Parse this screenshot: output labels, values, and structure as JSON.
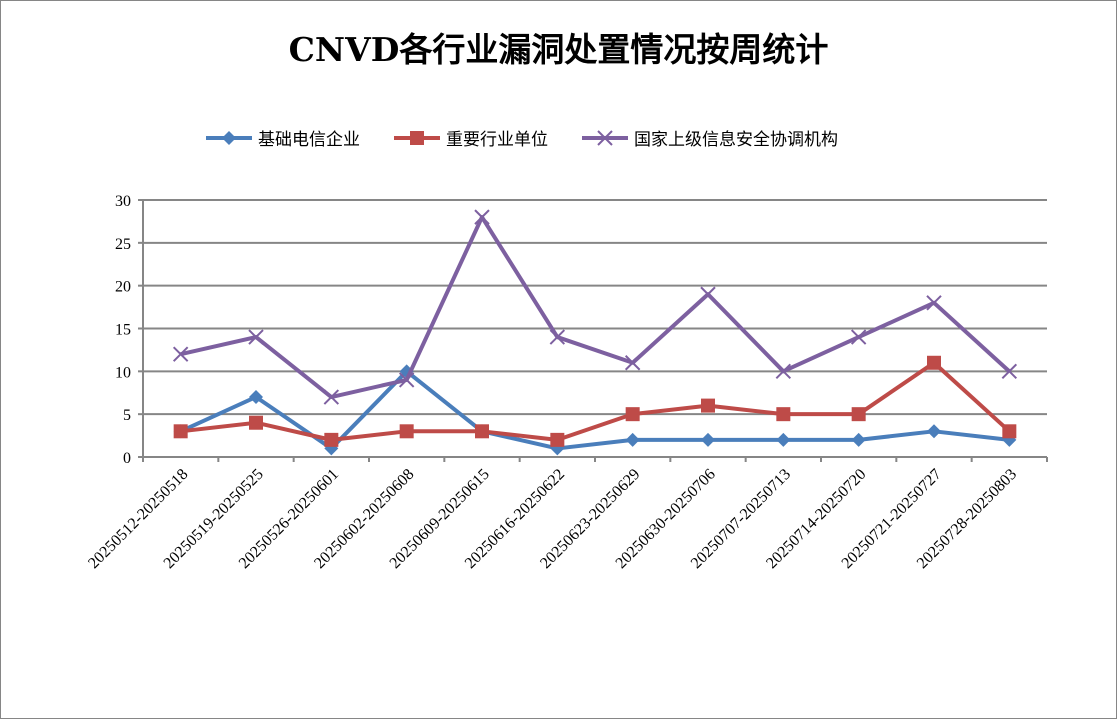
{
  "chart_data": {
    "type": "line",
    "title": "CNVD各行业漏洞处置情况按周统计",
    "categories": [
      "20250512-20250518",
      "20250519-20250525",
      "20250526-20250601",
      "20250602-20250608",
      "20250609-20250615",
      "20250616-20250622",
      "20250623-20250629",
      "20250630-20250706",
      "20250707-20250713",
      "20250714-20250720",
      "20250721-20250727",
      "20250728-20250803"
    ],
    "series": [
      {
        "name": "基础电信企业",
        "color": "#4a7ebb",
        "marker": "diamond",
        "values": [
          3,
          7,
          1,
          10,
          3,
          1,
          2,
          2,
          2,
          2,
          3,
          2
        ]
      },
      {
        "name": "重要行业单位",
        "color": "#be4b48",
        "marker": "square",
        "values": [
          3,
          4,
          2,
          3,
          3,
          2,
          5,
          6,
          5,
          5,
          11,
          3
        ]
      },
      {
        "name": "国家上级信息安全协调机构",
        "color": "#7d60a0",
        "marker": "x",
        "values": [
          12,
          14,
          7,
          9,
          28,
          14,
          11,
          19,
          10,
          14,
          18,
          10
        ]
      }
    ],
    "ylim": [
      0,
      30
    ],
    "yticks": [
      0,
      5,
      10,
      15,
      20,
      25,
      30
    ],
    "grid": true,
    "legend": "top",
    "xlabel": "",
    "ylabel": ""
  }
}
